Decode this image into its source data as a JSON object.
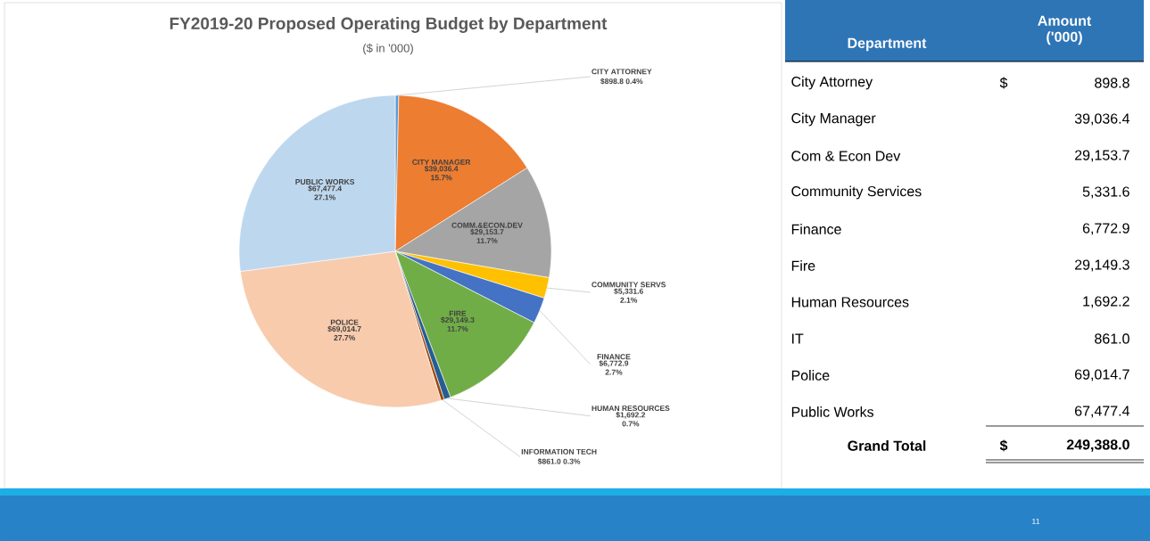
{
  "chart_data": [
    {
      "type": "pie",
      "title": "FY2019-20 Proposed Operating Budget by Department",
      "subtitle": "($ in '000)",
      "categories": [
        "CITY ATTORNEY",
        "CITY MANAGER",
        "COMM.&ECON.DEV",
        "COMMUNITY SERVS",
        "FINANCE",
        "FIRE",
        "HUMAN RESOURCES",
        "INFORMATION TECH",
        "POLICE",
        "PUBLIC WORKS"
      ],
      "values": [
        898.8,
        39036.4,
        29153.7,
        5331.6,
        6772.9,
        29149.3,
        1692.2,
        861.0,
        69014.7,
        67477.4
      ],
      "colors": [
        "#5b9bd5",
        "#ed7d31",
        "#a5a5a5",
        "#ffc000",
        "#4472c4",
        "#70ad47",
        "#255e91",
        "#9e480e",
        "#f8cbad",
        "#bdd7ee"
      ],
      "value_labels": [
        "$898.8 0.4%",
        "$39,036.4 15.7%",
        "$29,153.7 11.7%",
        "$5,331.6 2.1%",
        "$6,772.9 2.7%",
        "$29,149.3 11.7%",
        "$1,692.2 0.7%",
        "$861.0 0.3%",
        "$69,014.7 27.7%",
        "$67,477.4 27.1%"
      ]
    },
    {
      "type": "other",
      "xlabel": "Department",
      "ylabel": "Amount ('000)",
      "categories": [
        "City Attorney",
        "City Manager",
        "Com & Econ Dev",
        "Community Services",
        "Finance",
        "Fire",
        "Human Resources",
        "IT",
        "Police",
        "Public Works"
      ],
      "values": [
        898.8,
        39036.4,
        29153.7,
        5331.6,
        6772.9,
        29149.3,
        1692.2,
        861.0,
        69014.7,
        67477.4
      ],
      "value_labels": [
        "898.8",
        "39,036.4",
        "29,153.7",
        "5,331.6",
        "6,772.9",
        "29,149.3",
        "1,692.2",
        "861.0",
        "69,014.7",
        "67,477.4"
      ],
      "annotations": [
        "$",
        "Grand Total",
        "$",
        "249,388.0",
        "11"
      ]
    }
  ]
}
